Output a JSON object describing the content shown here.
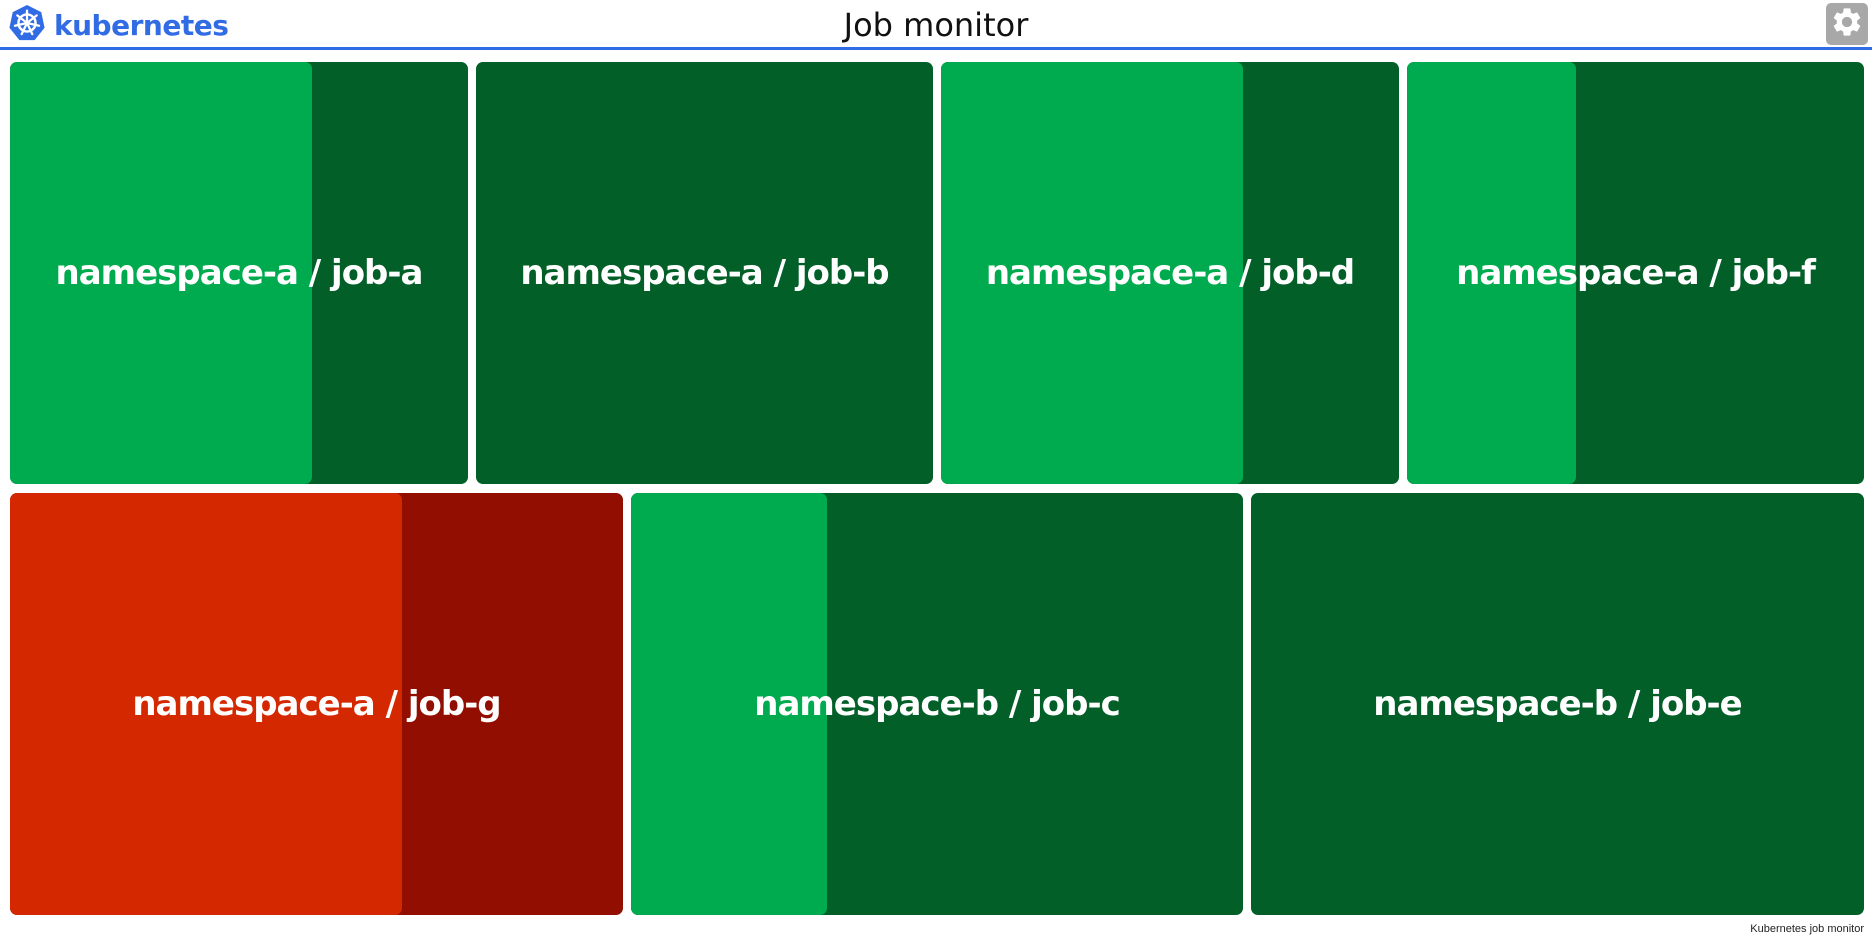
{
  "header": {
    "logo_text": "kubernetes",
    "title": "Job monitor",
    "icons": {
      "logo": "kubernetes-wheel-icon",
      "settings": "gear-icon"
    }
  },
  "colors": {
    "accent": "#326ce5",
    "success_dark": "#025f28",
    "success_light": "#00aa4e",
    "failure_dark": "#920e00",
    "failure_light": "#d42800",
    "settings_bg": "#a8a8a8"
  },
  "jobs": [
    {
      "label": "namespace-a / job-a",
      "status": "success",
      "progress": 0.66
    },
    {
      "label": "namespace-a / job-b",
      "status": "success",
      "progress": 0.0
    },
    {
      "label": "namespace-a / job-d",
      "status": "success",
      "progress": 0.66
    },
    {
      "label": "namespace-a / job-f",
      "status": "success",
      "progress": 0.37
    },
    {
      "label": "namespace-a / job-g",
      "status": "failure",
      "progress": 0.64
    },
    {
      "label": "namespace-b / job-c",
      "status": "success",
      "progress": 0.32
    },
    {
      "label": "namespace-b / job-e",
      "status": "success",
      "progress": 0.0
    }
  ],
  "footer": {
    "text": "Kubernetes job monitor"
  }
}
